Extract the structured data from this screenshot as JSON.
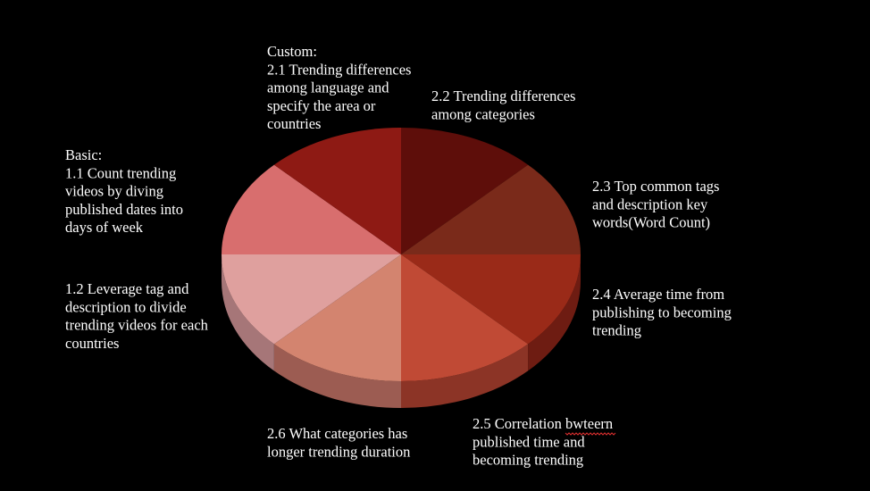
{
  "segments": [
    {
      "lines": [
        "2.2 Trending differences",
        "among categories"
      ]
    },
    {
      "lines": [
        "2.3 Top common tags",
        "and description key",
        "words(Word Count)"
      ]
    },
    {
      "lines": [
        "2.4 Average time from",
        "publishing to becoming",
        "trending"
      ]
    },
    {
      "lines": [
        "2.5 Correlation bwteern",
        "published time and",
        "becoming trending"
      ]
    },
    {
      "lines": [
        "2.6 What categories has",
        "longer trending duration"
      ]
    },
    {
      "lines": [
        "1.2 Leverage tag and",
        "description to divide",
        "trending videos for each",
        "countries"
      ]
    },
    {
      "lines": [
        "Basic:",
        "1.1 Count trending",
        "videos by diving",
        "published dates into",
        "days of week"
      ]
    },
    {
      "lines": [
        "Custom:",
        "2.1 Trending differences",
        "among language and",
        "specify the area or",
        "countries"
      ]
    }
  ]
}
